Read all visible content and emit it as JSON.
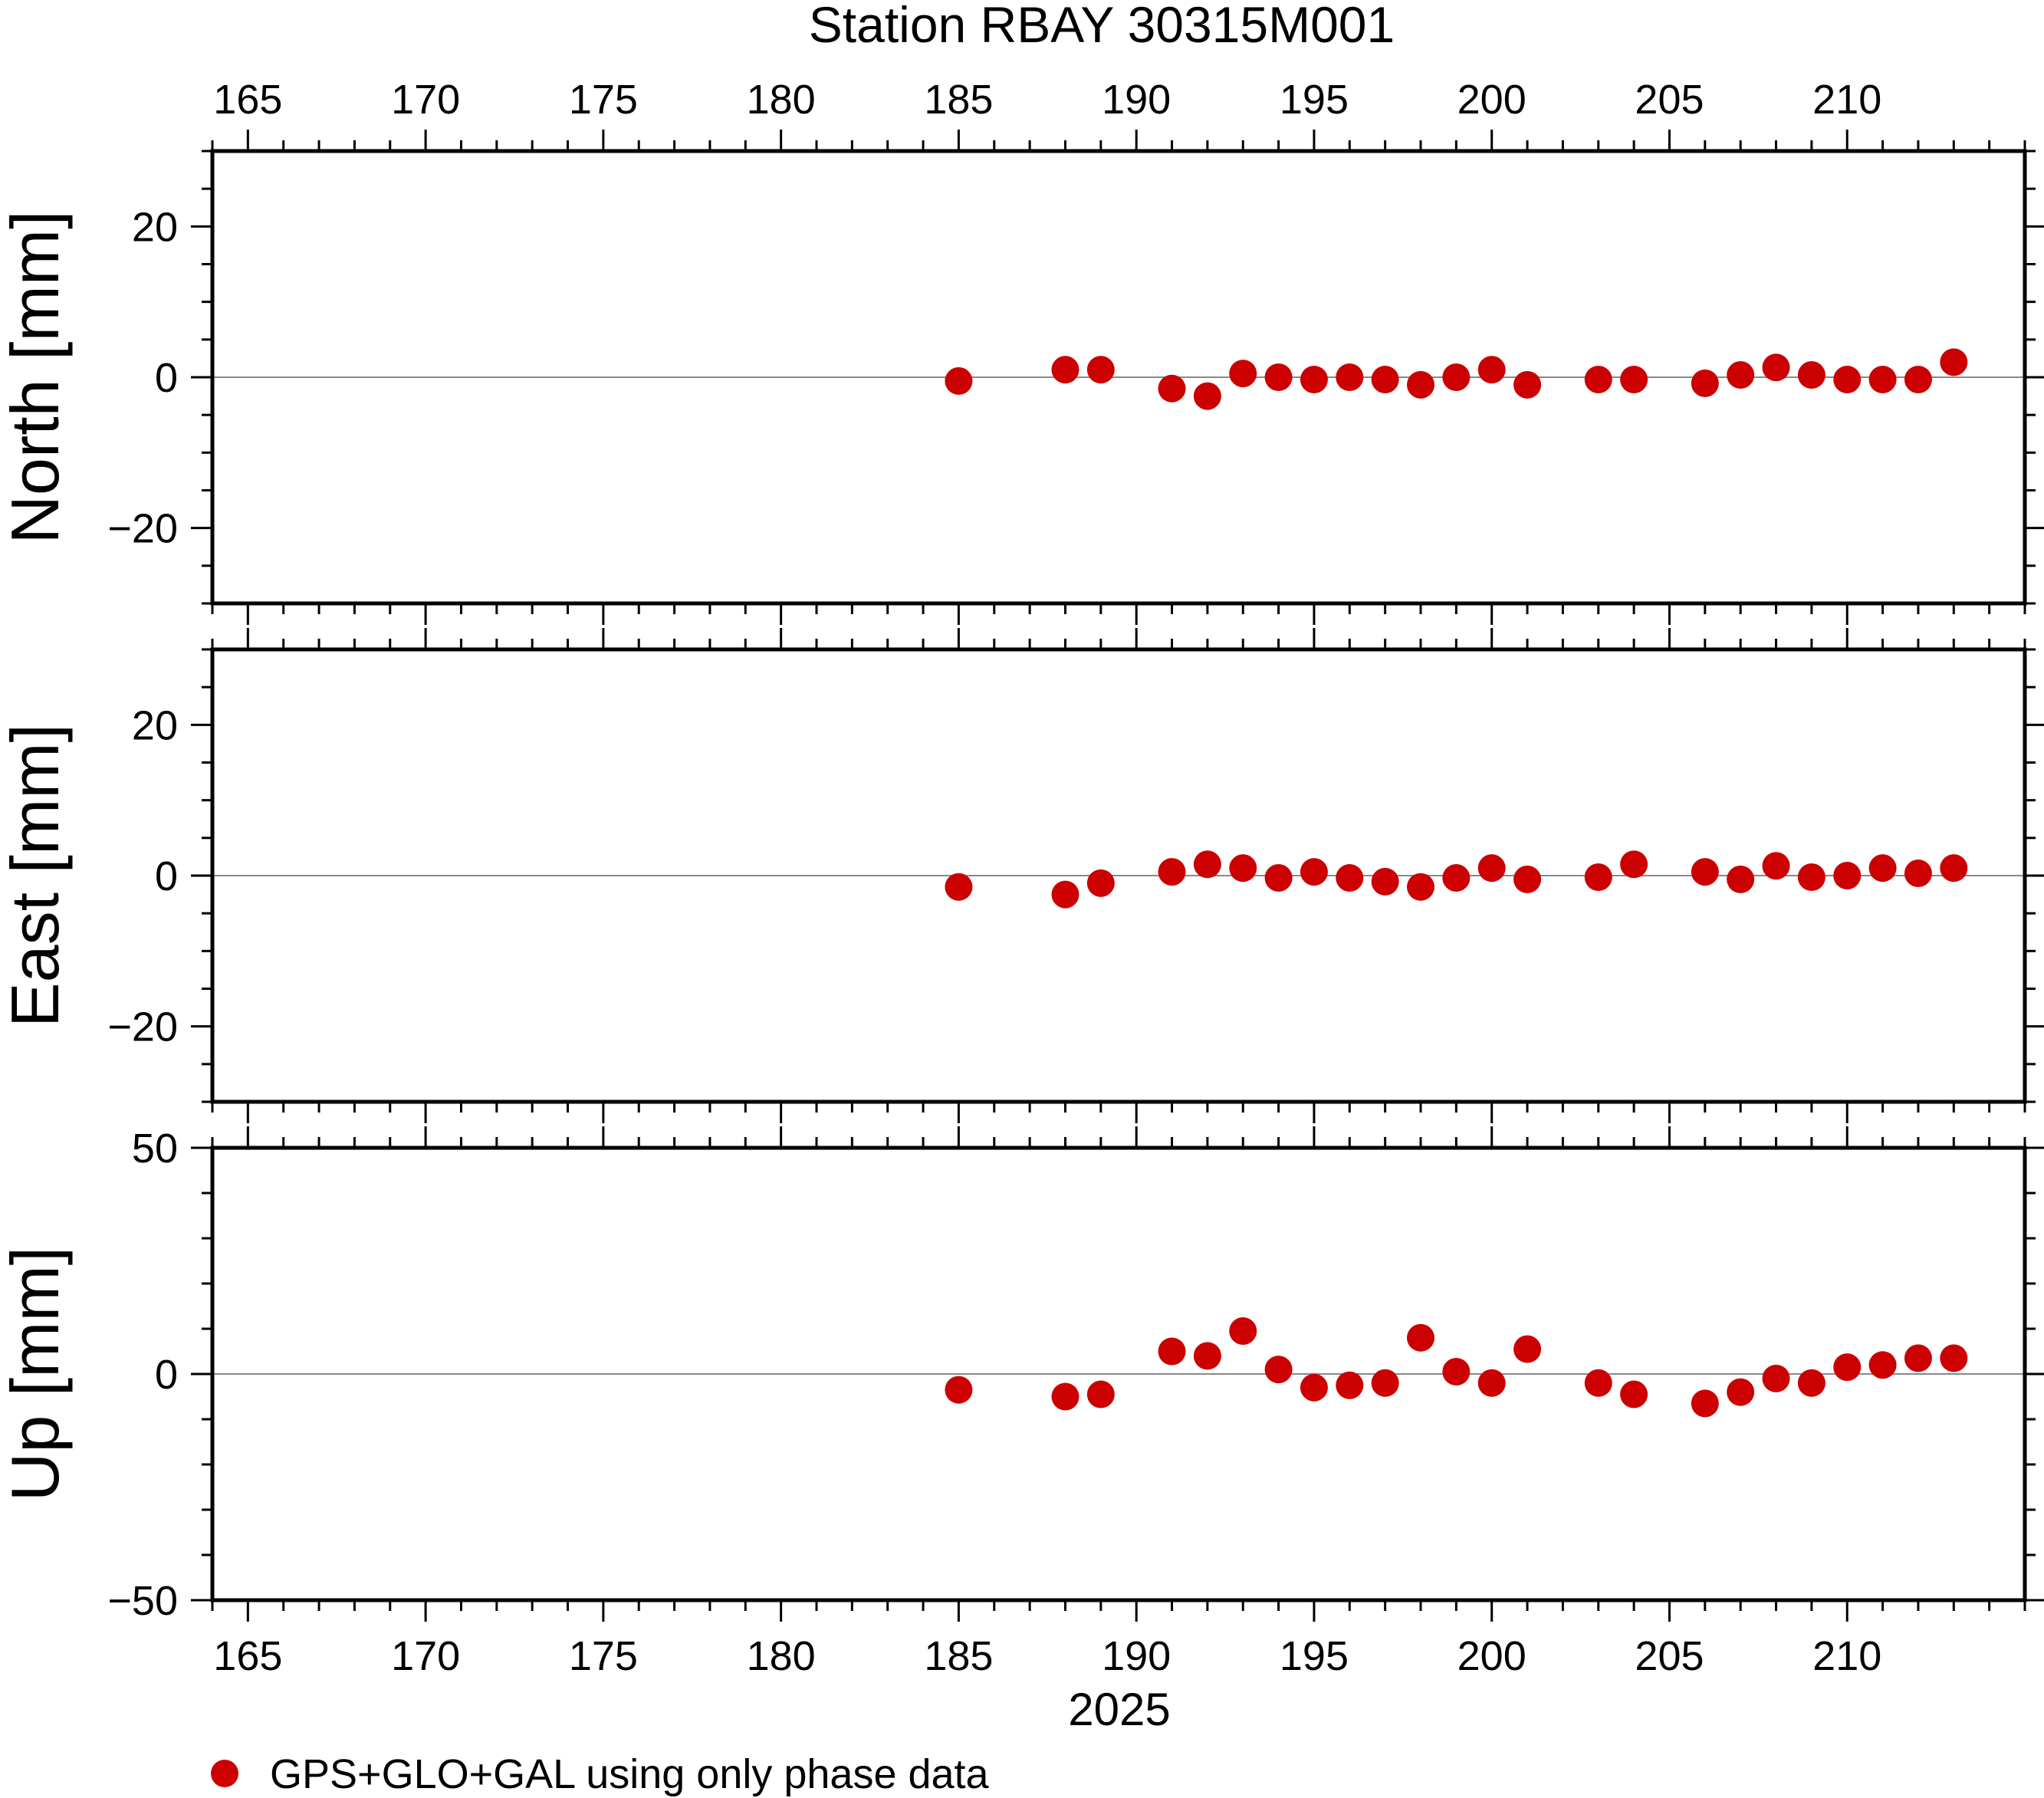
{
  "chart_data": {
    "type": "scatter",
    "title": "Station RBAY 30315M001",
    "xlabel": "2025",
    "xlim": [
      164,
      215
    ],
    "xticks": [
      165,
      170,
      175,
      180,
      185,
      190,
      195,
      200,
      205,
      210
    ],
    "xtick_labels": [
      "165",
      "170",
      "175",
      "180",
      "185",
      "190",
      "195",
      "200",
      "205",
      "210"
    ],
    "x": [
      185,
      188,
      189,
      191,
      192,
      193,
      194,
      195,
      196,
      197,
      198,
      199,
      200,
      201,
      203,
      204,
      206,
      207,
      208,
      209,
      210,
      211,
      212,
      213
    ],
    "marker_color": "#cc0000",
    "legend": {
      "label": "GPS+GLO+GAL using only phase data",
      "placement": "bottom-left, below axes"
    },
    "panels": [
      {
        "ylabel": "North [mm]",
        "ylim": [
          -30,
          30
        ],
        "yticks": [
          -20,
          0,
          20
        ],
        "ytick_labels": [
          "−20",
          "0",
          "20"
        ],
        "zero_line": true,
        "values": [
          -0.5,
          1.0,
          1.0,
          -1.5,
          -2.5,
          0.5,
          0.0,
          -0.3,
          0.0,
          -0.3,
          -1.0,
          0.0,
          1.0,
          -1.0,
          -0.3,
          -0.3,
          -0.8,
          0.3,
          1.3,
          0.3,
          -0.3,
          -0.3,
          -0.3,
          2.0
        ]
      },
      {
        "ylabel": "East [mm]",
        "ylim": [
          -30,
          30
        ],
        "yticks": [
          -20,
          0,
          20
        ],
        "ytick_labels": [
          "−20",
          "0",
          "20"
        ],
        "zero_line": true,
        "values": [
          -1.5,
          -2.5,
          -1.0,
          0.5,
          1.5,
          1.0,
          -0.3,
          0.5,
          -0.3,
          -0.8,
          -1.5,
          -0.3,
          1.0,
          -0.5,
          -0.2,
          1.5,
          0.5,
          -0.5,
          1.3,
          -0.2,
          0.0,
          1.0,
          0.3,
          1.0
        ]
      },
      {
        "ylabel": "Up [mm]",
        "ylim": [
          -50,
          50
        ],
        "yticks": [
          -50,
          0,
          50
        ],
        "ytick_labels": [
          "−50",
          "0",
          "50"
        ],
        "zero_line": true,
        "values": [
          -3.5,
          -5.0,
          -4.5,
          5.0,
          4.0,
          9.5,
          1.0,
          -3.0,
          -2.5,
          -2.0,
          8.0,
          0.5,
          -2.0,
          5.5,
          -2.0,
          -4.5,
          -6.5,
          -4.0,
          -1.0,
          -2.0,
          1.5,
          2.0,
          3.5,
          3.5
        ]
      }
    ]
  }
}
